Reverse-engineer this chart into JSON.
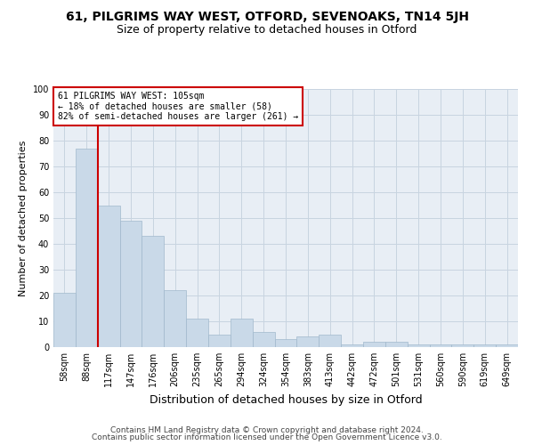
{
  "title1": "61, PILGRIMS WAY WEST, OTFORD, SEVENOAKS, TN14 5JH",
  "title2": "Size of property relative to detached houses in Otford",
  "xlabel": "Distribution of detached houses by size in Otford",
  "ylabel": "Number of detached properties",
  "categories": [
    "58sqm",
    "88sqm",
    "117sqm",
    "147sqm",
    "176sqm",
    "206sqm",
    "235sqm",
    "265sqm",
    "294sqm",
    "324sqm",
    "354sqm",
    "383sqm",
    "413sqm",
    "442sqm",
    "472sqm",
    "501sqm",
    "531sqm",
    "560sqm",
    "590sqm",
    "619sqm",
    "649sqm"
  ],
  "values": [
    21,
    77,
    55,
    49,
    43,
    22,
    11,
    5,
    11,
    6,
    3,
    4,
    5,
    1,
    2,
    2,
    1,
    1,
    1,
    1,
    1
  ],
  "bar_color": "#c9d9e8",
  "bar_edge_color": "#a0b8cc",
  "grid_color": "#c8d4e0",
  "bg_color": "#e8eef5",
  "annotation_box_text": "61 PILGRIMS WAY WEST: 105sqm\n← 18% of detached houses are smaller (58)\n82% of semi-detached houses are larger (261) →",
  "annotation_box_color": "#ffffff",
  "annotation_box_edge_color": "#cc0000",
  "vline_x": 1.5,
  "vline_color": "#cc0000",
  "ylim": [
    0,
    100
  ],
  "yticks": [
    0,
    10,
    20,
    30,
    40,
    50,
    60,
    70,
    80,
    90,
    100
  ],
  "footer1": "Contains HM Land Registry data © Crown copyright and database right 2024.",
  "footer2": "Contains public sector information licensed under the Open Government Licence v3.0.",
  "title1_fontsize": 10,
  "title2_fontsize": 9,
  "xlabel_fontsize": 9,
  "ylabel_fontsize": 8,
  "tick_fontsize": 7,
  "annotation_fontsize": 7,
  "footer_fontsize": 6.5
}
